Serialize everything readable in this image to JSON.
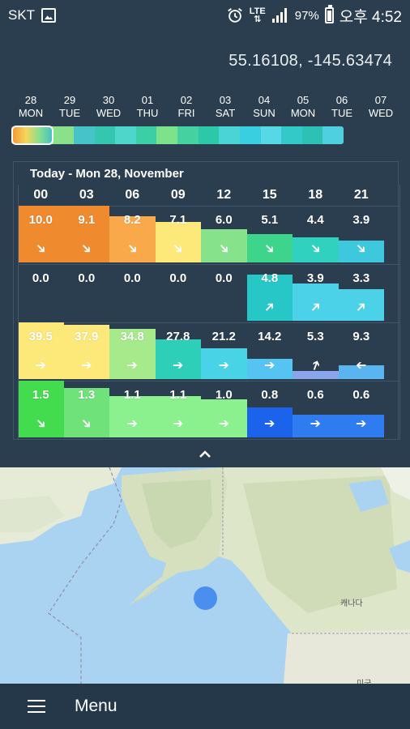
{
  "status": {
    "carrier": "SKT",
    "network": "LTE",
    "battery": "97%",
    "time": "오후 4:52"
  },
  "location": {
    "coords": "55.16108, -145.63474"
  },
  "days": [
    {
      "num": "28",
      "name": "MON"
    },
    {
      "num": "29",
      "name": "TUE"
    },
    {
      "num": "30",
      "name": "WED"
    },
    {
      "num": "01",
      "name": "THU"
    },
    {
      "num": "02",
      "name": "FRI"
    },
    {
      "num": "03",
      "name": "SAT"
    },
    {
      "num": "04",
      "name": "SUN"
    },
    {
      "num": "05",
      "name": "MON"
    },
    {
      "num": "06",
      "name": "TUE"
    },
    {
      "num": "07",
      "name": "WED"
    }
  ],
  "timeline_colors": [
    "#f59a35",
    "#f7d45a",
    "#8be08a",
    "#45c3c8",
    "#35c6b2",
    "#4fd6cb",
    "#3ccfa5",
    "#7ee28a",
    "#45d2a0",
    "#2cc9a8",
    "#4bd4d6",
    "#39cfe0",
    "#56d8e6",
    "#33c9c9",
    "#2dc0b4",
    "#4ed0e0"
  ],
  "forecast": {
    "title": "Today - Mon 28, November",
    "hours": [
      "00",
      "03",
      "06",
      "09",
      "12",
      "15",
      "18",
      "21"
    ],
    "rows": [
      {
        "name": "wind",
        "values": [
          "10.0",
          "9.1",
          "8.2",
          "7.1",
          "6.0",
          "5.1",
          "4.4",
          "3.9"
        ],
        "colors": [
          "#f08a2f",
          "#f08a2f",
          "#f9a94a",
          "#fde97a",
          "#87e38b",
          "#3dd58c",
          "#30d2bf",
          "#3ec8de"
        ],
        "heights": [
          1.0,
          1.0,
          0.82,
          0.72,
          0.59,
          0.5,
          0.44,
          0.39
        ],
        "arrows": [
          "➔",
          "➔",
          "➔",
          "➔",
          "➔",
          "➔",
          "➔",
          "➔"
        ],
        "rot": [
          45,
          45,
          45,
          45,
          45,
          45,
          45,
          45
        ]
      },
      {
        "name": "gust",
        "values": [
          "0.0",
          "0.0",
          "0.0",
          "0.0",
          "0.0",
          "4.8",
          "3.9",
          "3.3"
        ],
        "colors": [
          "#2b3e50",
          "#2b3e50",
          "#2b3e50",
          "#2b3e50",
          "#2b3e50",
          "#28c7c7",
          "#4bd2e8",
          "#4bd2e8"
        ],
        "heights": [
          0,
          0,
          0,
          0,
          0,
          0.82,
          0.66,
          0.56
        ],
        "arrows": [
          "",
          "",
          "",
          "",
          "",
          "➔",
          "➔",
          "➔"
        ],
        "rot": [
          0,
          0,
          0,
          0,
          0,
          -45,
          -45,
          -45
        ]
      },
      {
        "name": "wave",
        "values": [
          "39.5",
          "37.9",
          "34.8",
          "27.8",
          "21.2",
          "14.2",
          "5.3",
          "9.3"
        ],
        "colors": [
          "#fde97a",
          "#fde97a",
          "#a7ea8c",
          "#2ecfb8",
          "#48d3e6",
          "#56c4f3",
          "#8aa6ea",
          "#5ab4f0"
        ],
        "heights": [
          1.0,
          0.96,
          0.88,
          0.7,
          0.54,
          0.36,
          0.14,
          0.24
        ],
        "arrows": [
          "➔",
          "➔",
          "➔",
          "➔",
          "➔",
          "➔",
          "➔",
          "➔"
        ],
        "rot": [
          0,
          0,
          0,
          0,
          0,
          0,
          -70,
          180
        ]
      },
      {
        "name": "period",
        "values": [
          "1.5",
          "1.3",
          "1.1",
          "1.1",
          "1.0",
          "0.8",
          "0.6",
          "0.6"
        ],
        "colors": [
          "#44dc4f",
          "#6fe27a",
          "#8bf08e",
          "#8bf08e",
          "#8bf08e",
          "#1b63ea",
          "#2f7bf0",
          "#2f7bf0"
        ],
        "heights": [
          1.0,
          0.87,
          0.73,
          0.73,
          0.67,
          0.53,
          0.4,
          0.4
        ],
        "arrows": [
          "➔",
          "➔",
          "➔",
          "➔",
          "➔",
          "➔",
          "➔",
          "➔"
        ],
        "rot": [
          45,
          45,
          0,
          0,
          0,
          0,
          0,
          0
        ]
      }
    ]
  },
  "map": {
    "label_canada": "캐나다",
    "label_usa": "미국"
  },
  "bottom": {
    "menu_label": "Menu"
  }
}
